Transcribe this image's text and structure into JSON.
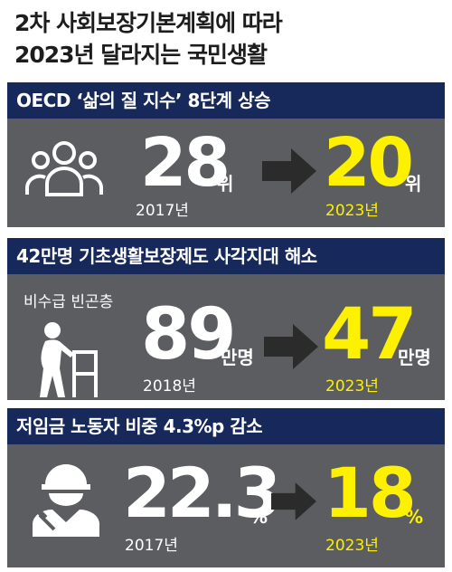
{
  "title": {
    "line1": "2차 사회보장기본계획에 따라",
    "line2": "2023년 달라지는 국민생활"
  },
  "sections": [
    {
      "heading": "OECD ‘삶의 질 지수’ 8단계 상승",
      "icon": "people-group-icon",
      "before": {
        "value": "28",
        "unit": "위",
        "year": "2017년"
      },
      "after": {
        "value": "20",
        "unit": "위",
        "year": "2023년"
      }
    },
    {
      "heading": "42만명 기초생활보장제도 사각지대 해소",
      "note": "비수급 빈곤층",
      "icon": "elderly-walker-icon",
      "before": {
        "value": "89",
        "unit": "만명",
        "year": "2018년"
      },
      "after": {
        "value": "47",
        "unit": "만명",
        "year": "2023년"
      }
    },
    {
      "heading": "저임금 노동자 비중 4.3%p 감소",
      "icon": "construction-worker-icon",
      "before": {
        "value": "22.3",
        "unit": "%",
        "year": "2017년"
      },
      "after": {
        "value": "18",
        "unit": "%",
        "year": "2023년"
      }
    }
  ],
  "colors": {
    "banner": "#17295a",
    "panel": "#5b5d60",
    "highlight": "#fdf100",
    "arrow": "#2b2b2b"
  }
}
